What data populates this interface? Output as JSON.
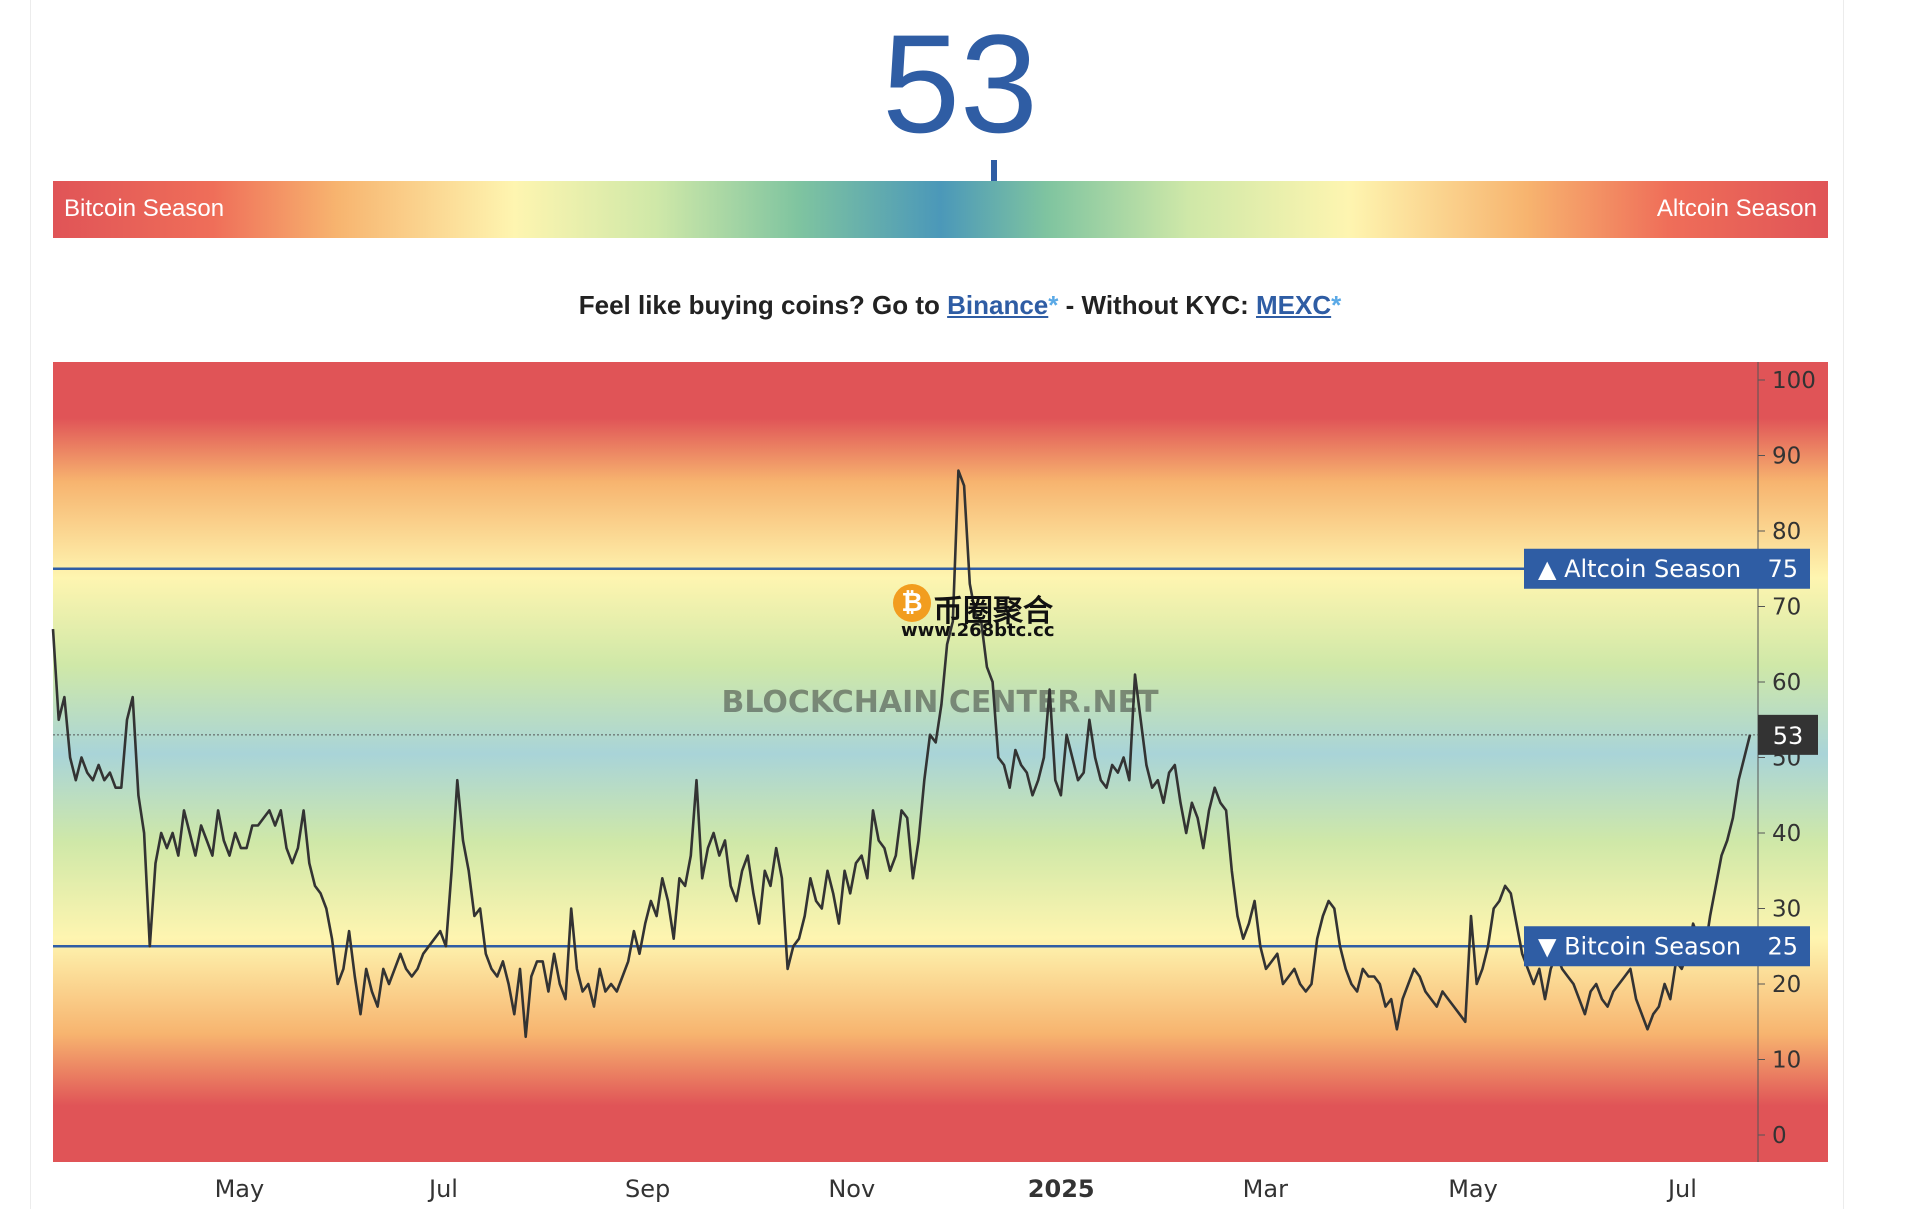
{
  "index": {
    "value": "53",
    "value_num": 53
  },
  "gauge": {
    "left_label": "Bitcoin Season",
    "right_label": "Altcoin Season"
  },
  "promo": {
    "prefix": "Feel like buying coins? Go to ",
    "binance": "Binance",
    "star": "*",
    "middle": " - Without KYC: ",
    "mexc": "MEXC"
  },
  "watermark": {
    "logo_text": "BLOCKCHAIN CENTER.NET",
    "overlay_cn": "币圈聚合",
    "overlay_url": "www.268btc.cc",
    "coin_glyph": "₿"
  },
  "chart_data": {
    "type": "line",
    "series": [
      {
        "values": [
          67,
          55,
          58,
          50,
          47,
          50,
          48,
          47,
          49,
          47,
          48,
          46,
          46,
          55,
          58,
          45,
          40,
          25,
          36,
          40,
          38,
          40,
          37,
          43,
          40,
          37,
          41,
          39,
          37,
          43,
          39,
          37,
          40,
          38,
          38,
          41,
          41,
          42,
          43,
          41,
          43,
          38,
          36,
          38,
          43,
          36,
          33,
          32,
          30,
          26,
          20,
          22,
          27,
          21,
          16,
          22,
          19,
          17,
          22,
          20,
          22,
          24,
          22,
          21,
          22,
          24,
          25,
          26,
          27,
          25,
          35,
          47,
          39,
          35,
          29,
          30,
          24,
          22,
          21,
          23,
          20,
          16,
          22,
          13,
          21,
          23,
          23,
          19,
          24,
          20,
          18,
          30,
          22,
          19,
          20,
          17,
          22,
          19,
          20,
          19,
          21,
          23,
          27,
          24,
          28,
          31,
          29,
          34,
          31,
          26,
          34,
          33,
          37,
          47,
          34,
          38,
          40,
          37,
          39,
          33,
          31,
          35,
          37,
          32,
          28,
          35,
          33,
          38,
          34,
          22,
          25,
          26,
          29,
          34,
          31,
          30,
          35,
          32,
          28,
          35,
          32,
          36,
          37,
          34,
          43,
          39,
          38,
          35,
          37,
          43,
          42,
          34,
          39,
          47,
          53,
          52,
          57,
          65,
          68,
          88,
          86,
          73,
          69,
          68,
          62,
          60,
          50,
          49,
          46,
          51,
          49,
          48,
          45,
          47,
          50,
          59,
          47,
          45,
          53,
          50,
          47,
          48,
          55,
          50,
          47,
          46,
          49,
          48,
          50,
          47,
          61,
          55,
          49,
          46,
          47,
          44,
          48,
          49,
          44,
          40,
          44,
          42,
          38,
          43,
          46,
          44,
          43,
          35,
          29,
          26,
          28,
          31,
          25,
          22,
          23,
          24,
          20,
          21,
          22,
          20,
          19,
          20,
          26,
          29,
          31,
          30,
          25,
          22,
          20,
          19,
          22,
          21,
          21,
          20,
          17,
          18,
          14,
          18,
          20,
          22,
          21,
          19,
          18,
          17,
          19,
          18,
          17,
          16,
          15,
          29,
          20,
          22,
          25,
          30,
          31,
          33,
          32,
          28,
          24,
          22,
          20,
          22,
          18,
          22,
          24,
          22,
          21,
          20,
          18,
          16,
          19,
          20,
          18,
          17,
          19,
          20,
          21,
          22,
          18,
          16,
          14,
          16,
          17,
          20,
          18,
          23,
          22,
          24,
          28,
          26,
          24,
          29,
          33,
          37,
          39,
          42,
          47,
          50,
          53
        ]
      }
    ],
    "xlabel": "",
    "ylabel": "",
    "ylim": [
      0,
      100
    ],
    "yticks": [
      100,
      90,
      80,
      70,
      60,
      50,
      40,
      30,
      20,
      10,
      0
    ],
    "xticks": [
      "May",
      "Jul",
      "Sep",
      "Nov",
      "2025",
      "Mar",
      "May",
      "Jul"
    ],
    "xtick_positions": [
      0.105,
      0.22,
      0.335,
      0.45,
      0.568,
      0.683,
      0.8,
      0.918
    ],
    "bold_xtick": "2025",
    "reference_lines": [
      {
        "label": "▲ Altcoin Season",
        "value": 75,
        "value_text": "75"
      },
      {
        "label": "▼ Bitcoin Season",
        "value": 25,
        "value_text": "25"
      }
    ],
    "current": {
      "value": 53,
      "value_text": "53"
    },
    "band_colors": {
      "red": "#e05457",
      "orange": "#f7b46f",
      "yellow": "#fef5b0",
      "green": "#cfe8a8",
      "blue": "#a9d4d8"
    },
    "line_color": "#333333",
    "refline_color": "#2f5da4",
    "tag_color": "#2f5da4",
    "current_tag_color": "#333333",
    "grid": false
  }
}
